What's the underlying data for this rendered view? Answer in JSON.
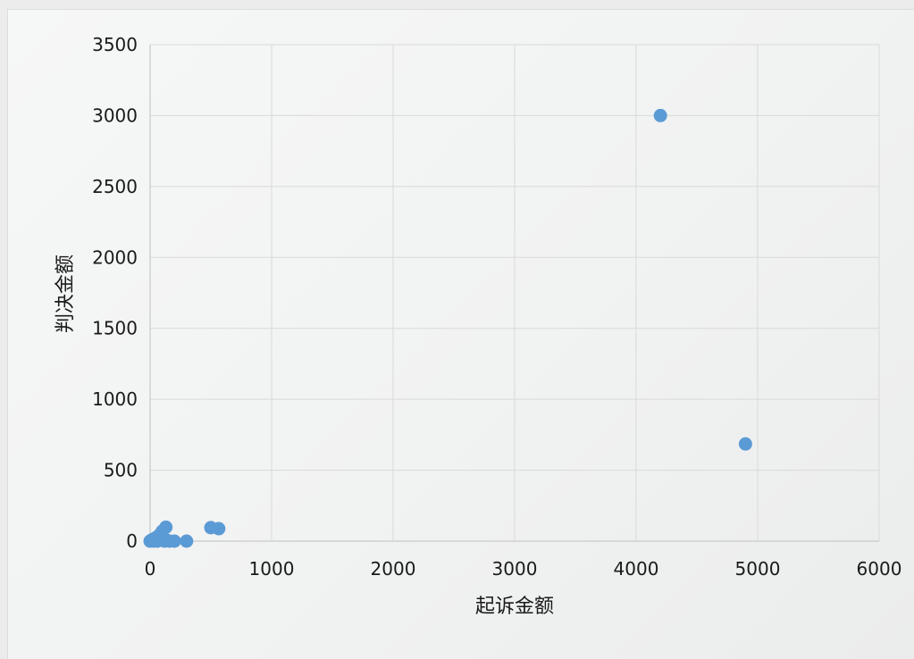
{
  "chart_data": {
    "type": "scatter",
    "title": "",
    "xlabel": "起诉金额",
    "ylabel": "判决金额",
    "xlim": [
      0,
      6000
    ],
    "ylim": [
      0,
      3500
    ],
    "xticks": [
      "0",
      "1000",
      "2000",
      "3000",
      "4000",
      "5000",
      "6000"
    ],
    "yticks": [
      "0",
      "500",
      "1000",
      "1500",
      "2000",
      "2500",
      "3000",
      "3500"
    ],
    "grid": true,
    "legend": "none",
    "series": [
      {
        "color": "#5b9bd5",
        "points": [
          [
            4200,
            3000
          ],
          [
            4900,
            685
          ],
          [
            500,
            95
          ],
          [
            565,
            88
          ],
          [
            130,
            98
          ],
          [
            100,
            70
          ],
          [
            80,
            45
          ],
          [
            60,
            30
          ],
          [
            40,
            20
          ],
          [
            20,
            10
          ],
          [
            10,
            5
          ],
          [
            5,
            2
          ],
          [
            0,
            0
          ],
          [
            30,
            0
          ],
          [
            50,
            5
          ],
          [
            70,
            10
          ],
          [
            90,
            15
          ],
          [
            110,
            20
          ],
          [
            140,
            5
          ],
          [
            160,
            0
          ],
          [
            200,
            0
          ],
          [
            300,
            0
          ],
          [
            120,
            0
          ],
          [
            60,
            0
          ]
        ]
      }
    ]
  },
  "colors": {
    "marker": "#5b9bd5",
    "gridline": "#d9d9d9",
    "axis": "#bfbfbf"
  }
}
